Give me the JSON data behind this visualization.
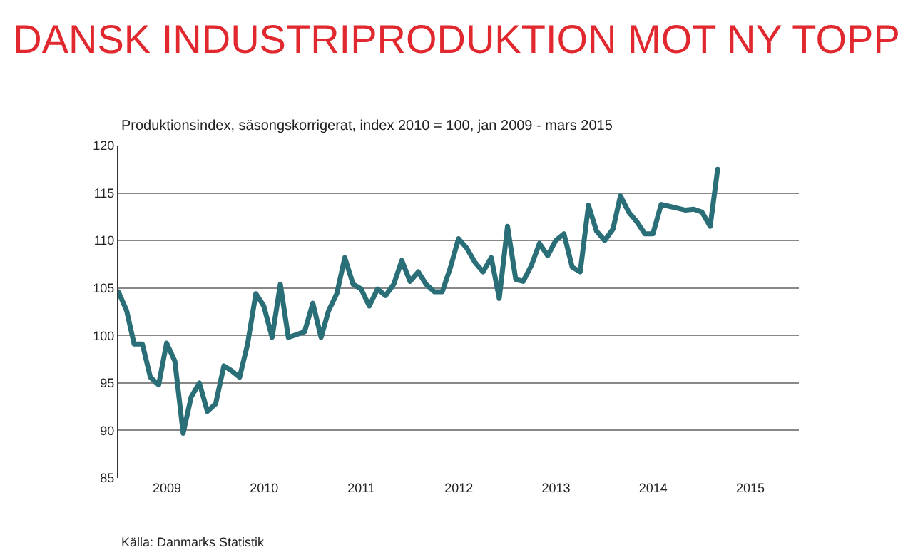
{
  "chart_data": {
    "type": "line",
    "title": "DANSK INDUSTRIPRODUKTION MOT NY TOPP",
    "subtitle": "Produktionsindex, säsongskorrigerat, index 2010 = 100, jan 2009 - mars 2015",
    "annotations": [
      "Källa: Danmarks Statistik"
    ],
    "x": [
      "2009-01",
      "2009-02",
      "2009-03",
      "2009-04",
      "2009-05",
      "2009-06",
      "2009-07",
      "2009-08",
      "2009-09",
      "2009-10",
      "2009-11",
      "2009-12",
      "2010-01",
      "2010-02",
      "2010-03",
      "2010-04",
      "2010-05",
      "2010-06",
      "2010-07",
      "2010-08",
      "2010-09",
      "2010-10",
      "2010-11",
      "2010-12",
      "2011-01",
      "2011-02",
      "2011-03",
      "2011-04",
      "2011-05",
      "2011-06",
      "2011-07",
      "2011-08",
      "2011-09",
      "2011-10",
      "2011-11",
      "2011-12",
      "2012-01",
      "2012-02",
      "2012-03",
      "2012-04",
      "2012-05",
      "2012-06",
      "2012-07",
      "2012-08",
      "2012-09",
      "2012-10",
      "2012-11",
      "2012-12",
      "2013-01",
      "2013-02",
      "2013-03",
      "2013-04",
      "2013-05",
      "2013-06",
      "2013-07",
      "2013-08",
      "2013-09",
      "2013-10",
      "2013-11",
      "2013-12",
      "2014-01",
      "2014-02",
      "2014-03",
      "2014-04",
      "2014-05",
      "2014-06",
      "2014-07",
      "2014-08",
      "2014-09",
      "2014-10",
      "2014-11",
      "2014-12",
      "2015-01",
      "2015-02",
      "2015-03"
    ],
    "series": [
      {
        "color": "#2a6f78",
        "values": [
          104.6,
          102.6,
          99.1,
          99.1,
          95.6,
          94.8,
          99.2,
          97.3,
          89.7,
          93.5,
          95.0,
          92.0,
          92.8,
          96.8,
          96.3,
          95.6,
          99.1,
          104.4,
          103.1,
          99.8,
          105.4,
          99.8,
          100.1,
          100.4,
          103.4,
          99.8,
          102.6,
          104.4,
          108.2,
          105.4,
          104.9,
          103.1,
          104.9,
          104.2,
          105.4,
          107.9,
          105.7,
          106.7,
          105.4,
          104.6,
          104.6,
          107.2,
          110.2,
          109.2,
          107.7,
          106.7,
          108.2,
          103.9,
          111.5,
          105.9,
          105.7,
          107.4,
          109.7,
          108.4,
          110.0,
          110.7,
          107.2,
          106.7,
          113.7,
          111.0,
          110.0,
          111.2,
          114.7,
          113.0,
          112.0,
          110.7,
          110.7,
          113.8,
          113.6,
          113.4,
          113.2,
          113.3,
          113.0,
          111.5,
          117.5
        ]
      }
    ],
    "xlim": [
      "2009-01-01",
      "2015-12-31"
    ],
    "xticks": [
      {
        "value": "2009-07-02",
        "label": "2009"
      },
      {
        "value": "2010-07-02",
        "label": "2010"
      },
      {
        "value": "2011-07-02",
        "label": "2011"
      },
      {
        "value": "2012-07-02",
        "label": "2012"
      },
      {
        "value": "2013-07-02",
        "label": "2013"
      },
      {
        "value": "2014-07-02",
        "label": "2014"
      },
      {
        "value": "2015-07-02",
        "label": "2015"
      }
    ],
    "ylim": [
      85,
      120
    ],
    "yticks": [
      85,
      90,
      95,
      100,
      105,
      110,
      115,
      120
    ],
    "grid": "y",
    "marker": "none",
    "line_style": "solid"
  }
}
